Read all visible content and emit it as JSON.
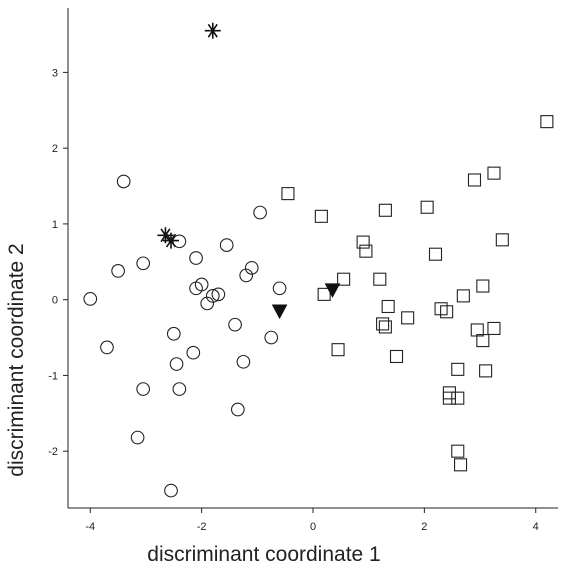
{
  "chart_data": {
    "type": "scatter",
    "title": "",
    "xlabel": "discriminant coordinate 1",
    "ylabel": "discriminant coordinate 2",
    "xlim": [
      -4.4,
      4.4
    ],
    "ylim": [
      -2.75,
      3.85
    ],
    "xticks": [
      -4,
      -2,
      0,
      2,
      4
    ],
    "yticks": [
      -2,
      -1,
      0,
      1,
      2,
      3
    ],
    "xtick_labels": [
      "-4",
      "-2",
      "0",
      "2",
      "4"
    ],
    "ytick_labels": [
      "-2",
      "-1",
      "0",
      "1",
      "2",
      "3"
    ],
    "grid": false,
    "legend": "none",
    "series": [
      {
        "marker": "circle",
        "points": [
          [
            -3.4,
            1.56
          ],
          [
            -2.4,
            0.77
          ],
          [
            -0.95,
            1.15
          ],
          [
            -1.55,
            0.72
          ],
          [
            -3.5,
            0.38
          ],
          [
            -3.05,
            0.48
          ],
          [
            -2.1,
            0.55
          ],
          [
            -1.2,
            0.32
          ],
          [
            -1.1,
            0.42
          ],
          [
            -2.1,
            0.15
          ],
          [
            -2.0,
            0.2
          ],
          [
            -1.9,
            -0.05
          ],
          [
            -1.8,
            0.05
          ],
          [
            -1.7,
            0.07
          ],
          [
            -0.6,
            0.15
          ],
          [
            -4.0,
            0.01
          ],
          [
            -3.7,
            -0.63
          ],
          [
            -2.5,
            -0.45
          ],
          [
            -1.4,
            -0.33
          ],
          [
            -0.75,
            -0.5
          ],
          [
            -2.45,
            -0.85
          ],
          [
            -2.15,
            -0.7
          ],
          [
            -1.25,
            -0.82
          ],
          [
            -3.05,
            -1.18
          ],
          [
            -2.4,
            -1.18
          ],
          [
            -1.35,
            -1.45
          ],
          [
            -3.15,
            -1.82
          ],
          [
            -2.55,
            -2.52
          ]
        ]
      },
      {
        "marker": "square",
        "points": [
          [
            4.2,
            2.35
          ],
          [
            3.25,
            1.67
          ],
          [
            2.9,
            1.58
          ],
          [
            -0.45,
            1.4
          ],
          [
            2.05,
            1.22
          ],
          [
            1.3,
            1.18
          ],
          [
            0.15,
            1.1
          ],
          [
            3.4,
            0.79
          ],
          [
            0.9,
            0.76
          ],
          [
            0.95,
            0.64
          ],
          [
            2.2,
            0.6
          ],
          [
            0.55,
            0.27
          ],
          [
            1.2,
            0.27
          ],
          [
            3.05,
            0.18
          ],
          [
            0.2,
            0.07
          ],
          [
            2.7,
            0.05
          ],
          [
            1.35,
            -0.09
          ],
          [
            2.3,
            -0.12
          ],
          [
            2.4,
            -0.16
          ],
          [
            1.7,
            -0.24
          ],
          [
            1.25,
            -0.32
          ],
          [
            1.3,
            -0.36
          ],
          [
            2.95,
            -0.4
          ],
          [
            3.25,
            -0.38
          ],
          [
            3.05,
            -0.54
          ],
          [
            0.45,
            -0.66
          ],
          [
            1.5,
            -0.75
          ],
          [
            2.6,
            -0.92
          ],
          [
            3.1,
            -0.94
          ],
          [
            2.45,
            -1.23
          ],
          [
            2.45,
            -1.3
          ],
          [
            2.6,
            -1.3
          ],
          [
            2.6,
            -2.0
          ],
          [
            2.65,
            -2.18
          ]
        ]
      },
      {
        "marker": "triangle-down",
        "points": [
          [
            -0.6,
            -0.15
          ],
          [
            0.35,
            0.13
          ]
        ]
      },
      {
        "marker": "star",
        "points": [
          [
            -1.8,
            3.55
          ],
          [
            -2.65,
            0.85
          ],
          [
            -2.55,
            0.78
          ]
        ]
      }
    ]
  }
}
